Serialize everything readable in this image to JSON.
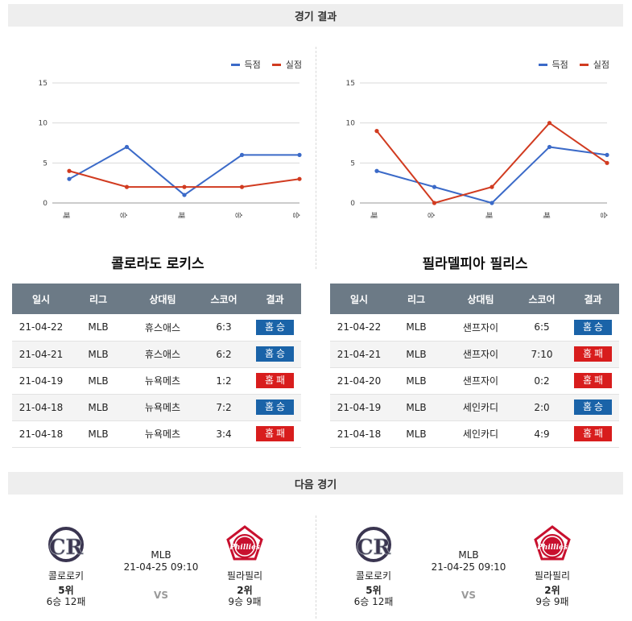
{
  "sections": {
    "results_title": "경기 결과",
    "next_title": "다음 경기"
  },
  "legend": {
    "score": "득점",
    "conceded": "실점"
  },
  "colors": {
    "score": "#3b6ac8",
    "conceded": "#d13b20",
    "win": "#1a63a8",
    "loss": "#d81d1d",
    "header": "#6c7a86"
  },
  "chart_data": [
    {
      "type": "line",
      "categories": [
        "패",
        "승",
        "패",
        "승",
        "승"
      ],
      "series": [
        {
          "name": "득점",
          "values": [
            3,
            7,
            1,
            6,
            6
          ]
        },
        {
          "name": "실점",
          "values": [
            4,
            2,
            2,
            2,
            3
          ]
        }
      ],
      "yticks": [
        "15",
        "10",
        "5",
        "0"
      ],
      "ylim": [
        0,
        15
      ],
      "grid": true,
      "legend_position": "top-right"
    },
    {
      "type": "line",
      "categories": [
        "패",
        "승",
        "패",
        "패",
        "승"
      ],
      "series": [
        {
          "name": "득점",
          "values": [
            4,
            2,
            0,
            7,
            6
          ]
        },
        {
          "name": "실점",
          "values": [
            9,
            0,
            2,
            10,
            5
          ]
        }
      ],
      "yticks": [
        "15",
        "10",
        "5",
        "0"
      ],
      "ylim": [
        0,
        15
      ],
      "grid": true,
      "legend_position": "top-right"
    }
  ],
  "teams": {
    "left": {
      "title": "콜로라도 로키스",
      "headers": [
        "일시",
        "리그",
        "상대팀",
        "스코어",
        "결과"
      ],
      "rows": [
        {
          "date": "21-04-22",
          "league": "MLB",
          "opponent": "휴스애스",
          "score": "6:3",
          "result": "홈승",
          "win": true
        },
        {
          "date": "21-04-21",
          "league": "MLB",
          "opponent": "휴스애스",
          "score": "6:2",
          "result": "홈승",
          "win": true
        },
        {
          "date": "21-04-19",
          "league": "MLB",
          "opponent": "뉴욕메츠",
          "score": "1:2",
          "result": "홈패",
          "win": false
        },
        {
          "date": "21-04-18",
          "league": "MLB",
          "opponent": "뉴욕메츠",
          "score": "7:2",
          "result": "홈승",
          "win": true
        },
        {
          "date": "21-04-18",
          "league": "MLB",
          "opponent": "뉴욕메츠",
          "score": "3:4",
          "result": "홈패",
          "win": false
        }
      ]
    },
    "right": {
      "title": "필라델피아 필리스",
      "headers": [
        "일시",
        "리그",
        "상대팀",
        "스코어",
        "결과"
      ],
      "rows": [
        {
          "date": "21-04-22",
          "league": "MLB",
          "opponent": "샌프자이",
          "score": "6:5",
          "result": "홈승",
          "win": true
        },
        {
          "date": "21-04-21",
          "league": "MLB",
          "opponent": "샌프자이",
          "score": "7:10",
          "result": "홈패",
          "win": false
        },
        {
          "date": "21-04-20",
          "league": "MLB",
          "opponent": "샌프자이",
          "score": "0:2",
          "result": "홈패",
          "win": false
        },
        {
          "date": "21-04-19",
          "league": "MLB",
          "opponent": "세인카디",
          "score": "2:0",
          "result": "홈승",
          "win": true
        },
        {
          "date": "21-04-18",
          "league": "MLB",
          "opponent": "세인카디",
          "score": "4:9",
          "result": "홈패",
          "win": false
        }
      ]
    }
  },
  "next_games": [
    {
      "league": "MLB",
      "datetime": "21-04-25 09:10",
      "vs": "VS",
      "home": {
        "name": "콜로로키",
        "rank": "5위",
        "record": "6승 12패",
        "logo": "rockies-logo"
      },
      "away": {
        "name": "필라필리",
        "rank": "2위",
        "record": "9승 9패",
        "logo": "phillies-logo"
      }
    },
    {
      "league": "MLB",
      "datetime": "21-04-25 09:10",
      "vs": "VS",
      "home": {
        "name": "콜로로키",
        "rank": "5위",
        "record": "6승 12패",
        "logo": "rockies-logo"
      },
      "away": {
        "name": "필라필리",
        "rank": "2위",
        "record": "9승 9패",
        "logo": "phillies-logo"
      }
    }
  ]
}
